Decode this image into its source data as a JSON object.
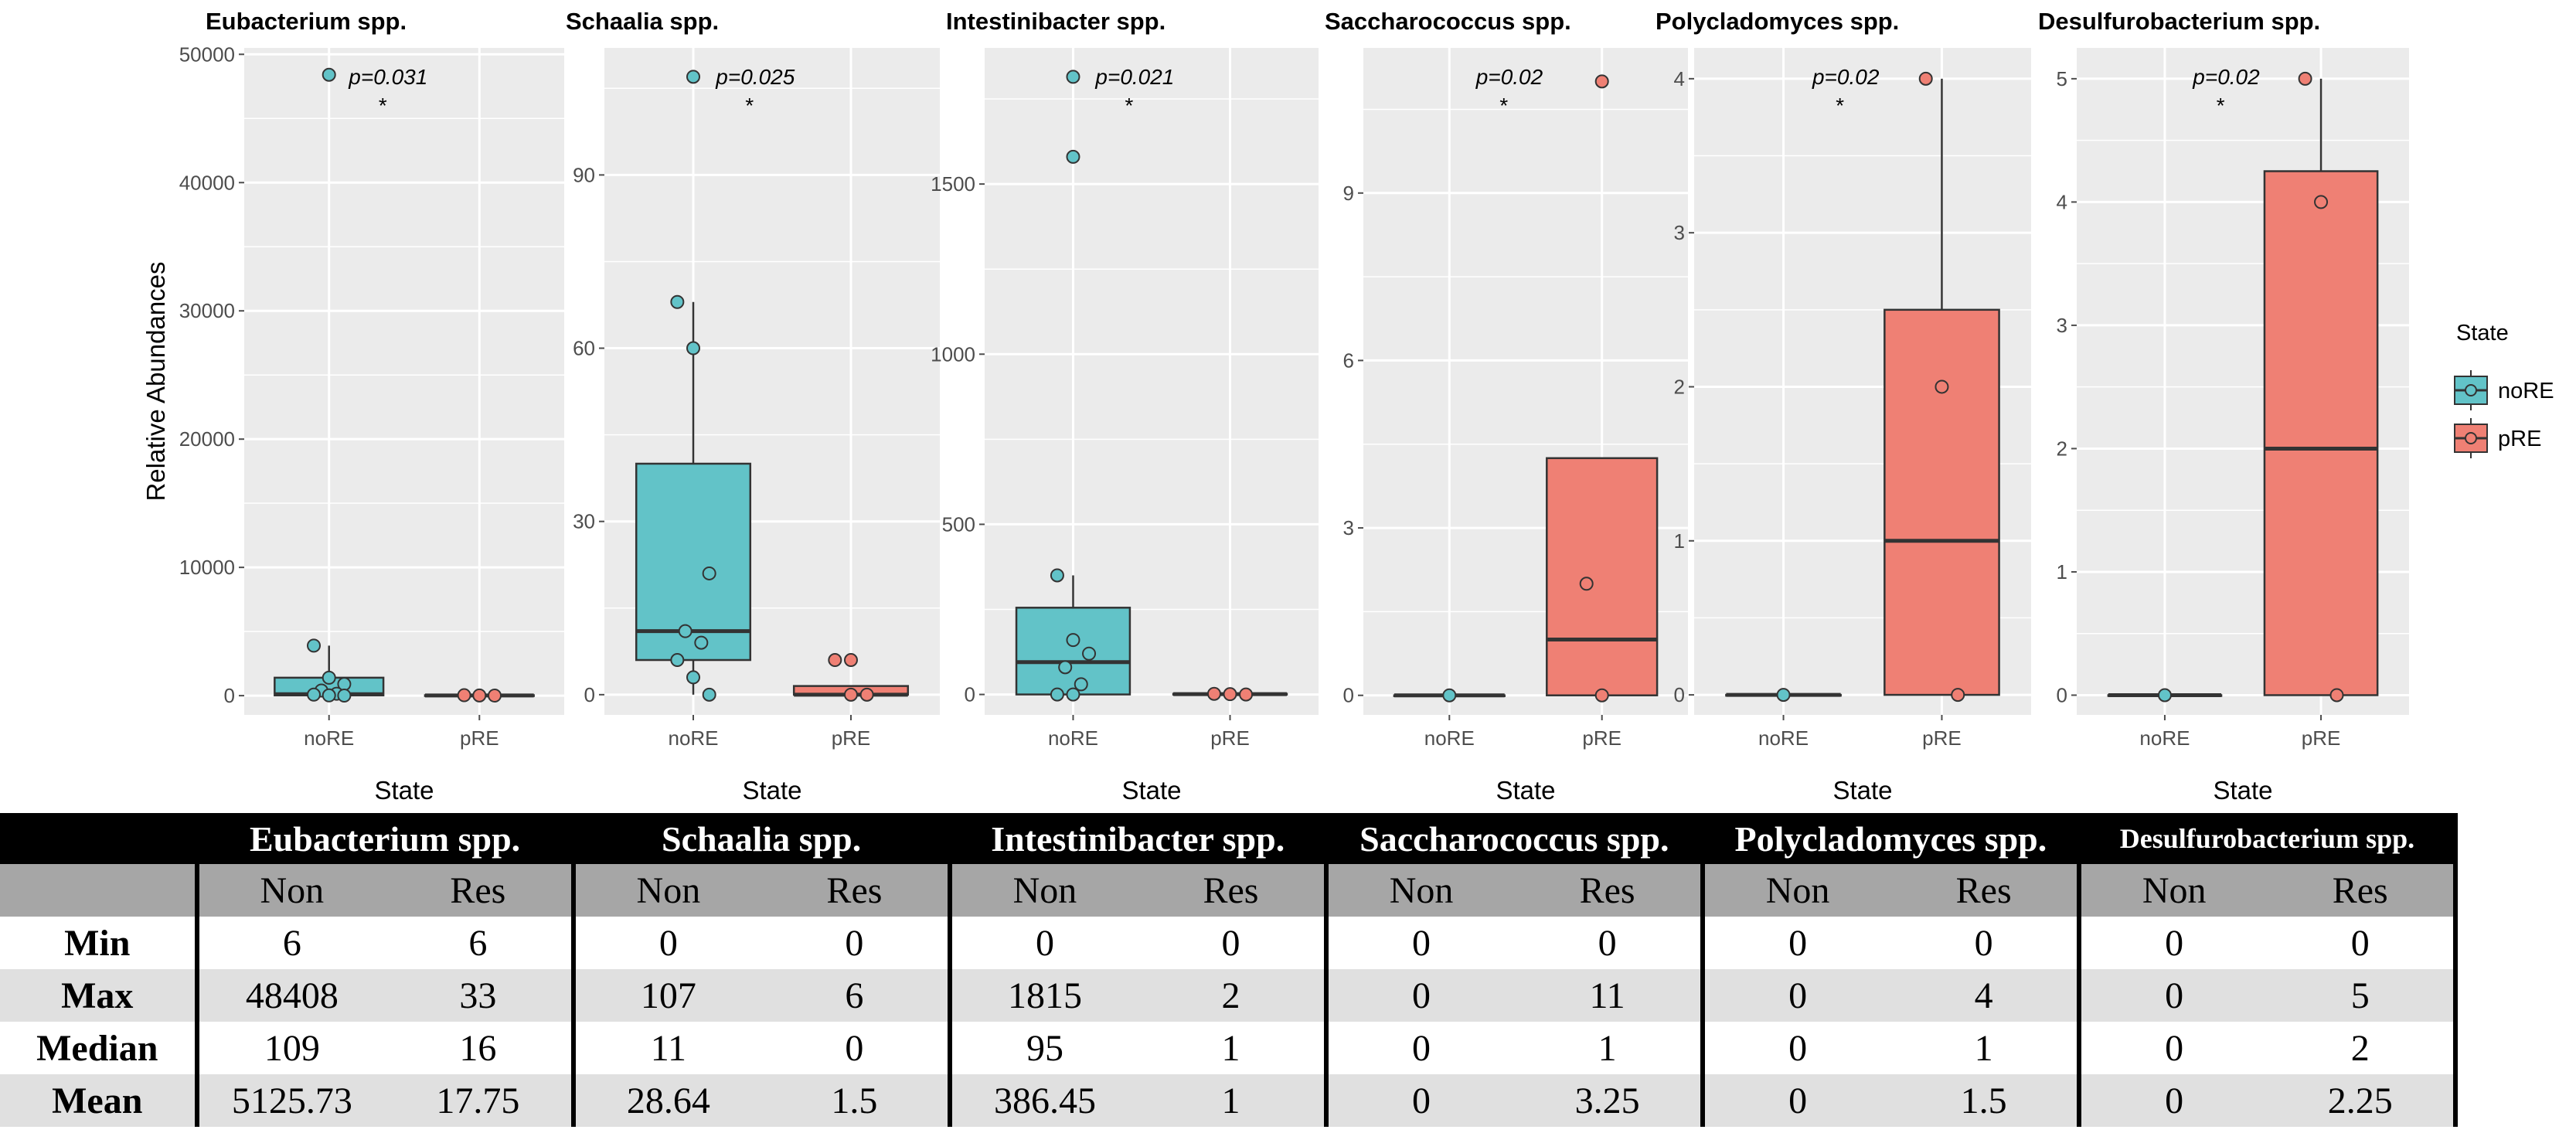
{
  "chart_data": [
    {
      "type": "box",
      "title": "Eubacterium spp.",
      "xlabel": "State",
      "ylabel": "Relative Abundances",
      "categories": [
        "noRE",
        "pRE"
      ],
      "yticks": [
        "0",
        "10000",
        "20000",
        "30000",
        "40000",
        "50000"
      ],
      "ylim": [
        -1500,
        50500
      ],
      "p_value": "p=0.031",
      "significance": "*",
      "boxes": [
        {
          "group": "noRE",
          "q1": 20,
          "median": 109,
          "q3": 1400,
          "whisker_low": 6,
          "whisker_high": 3900,
          "outliers": [
            48408
          ],
          "points": [
            3900,
            1400,
            900,
            400,
            150,
            80,
            20,
            6
          ]
        },
        {
          "group": "pRE",
          "q1": 6,
          "median": 16,
          "q3": 33,
          "whisker_low": 6,
          "whisker_high": 33,
          "outliers": [],
          "points": [
            33,
            16,
            6
          ]
        }
      ]
    },
    {
      "type": "box",
      "title": "Schaalia spp.",
      "xlabel": "State",
      "ylabel": "",
      "categories": [
        "noRE",
        "pRE"
      ],
      "yticks": [
        "0",
        "30",
        "60",
        "90"
      ],
      "ylim": [
        -3.5,
        112
      ],
      "p_value": "p=0.025",
      "significance": "*",
      "boxes": [
        {
          "group": "noRE",
          "q1": 6,
          "median": 11,
          "q3": 40,
          "whisker_low": 0,
          "whisker_high": 68,
          "outliers": [
            107
          ],
          "points": [
            68,
            60,
            21,
            11,
            9,
            6,
            3,
            0
          ]
        },
        {
          "group": "pRE",
          "q1": 0,
          "median": 0,
          "q3": 1.5,
          "whisker_low": 0,
          "whisker_high": 1.5,
          "outliers": [
            6
          ],
          "points": [
            6,
            0,
            0
          ]
        }
      ]
    },
    {
      "type": "box",
      "title": "Intestinibacter spp.",
      "xlabel": "State",
      "ylabel": "",
      "categories": [
        "noRE",
        "pRE"
      ],
      "yticks": [
        "0",
        "500",
        "1000",
        "1500"
      ],
      "ylim": [
        -60,
        1900
      ],
      "p_value": "p=0.021",
      "significance": "*",
      "boxes": [
        {
          "group": "noRE",
          "q1": 0,
          "median": 95,
          "q3": 255,
          "whisker_low": 0,
          "whisker_high": 350,
          "outliers": [
            1815,
            1580
          ],
          "points": [
            350,
            160,
            120,
            80,
            30,
            0,
            0
          ]
        },
        {
          "group": "pRE",
          "q1": 0,
          "median": 1,
          "q3": 2,
          "whisker_low": 0,
          "whisker_high": 2,
          "outliers": [],
          "points": [
            2,
            1,
            0
          ]
        }
      ]
    },
    {
      "type": "box",
      "title": "Saccharococcus spp.",
      "xlabel": "State",
      "ylabel": "",
      "categories": [
        "noRE",
        "pRE"
      ],
      "yticks": [
        "0",
        "3",
        "6",
        "9"
      ],
      "ylim": [
        -0.35,
        11.6
      ],
      "p_value": "p=0.02",
      "significance": "*",
      "boxes": [
        {
          "group": "noRE",
          "q1": 0,
          "median": 0,
          "q3": 0,
          "whisker_low": 0,
          "whisker_high": 0,
          "outliers": [],
          "points": [
            0
          ]
        },
        {
          "group": "pRE",
          "q1": 0,
          "median": 1,
          "q3": 4.25,
          "whisker_low": 0,
          "whisker_high": 4.25,
          "outliers": [
            11
          ],
          "points": [
            2,
            0
          ]
        }
      ]
    },
    {
      "type": "box",
      "title": "Polycladomyces spp.",
      "xlabel": "State",
      "ylabel": "",
      "categories": [
        "noRE",
        "pRE"
      ],
      "yticks": [
        "0",
        "1",
        "2",
        "3",
        "4"
      ],
      "ylim": [
        -0.13,
        4.2
      ],
      "p_value": "p=0.02",
      "significance": "*",
      "boxes": [
        {
          "group": "noRE",
          "q1": 0,
          "median": 0,
          "q3": 0,
          "whisker_low": 0,
          "whisker_high": 0,
          "outliers": [],
          "points": [
            0
          ]
        },
        {
          "group": "pRE",
          "q1": 0,
          "median": 1,
          "q3": 2.5,
          "whisker_low": 0,
          "whisker_high": 4,
          "outliers": [],
          "points": [
            4,
            2,
            0
          ]
        }
      ]
    },
    {
      "type": "box",
      "title": "Desulfurobacterium spp.",
      "xlabel": "State",
      "ylabel": "",
      "categories": [
        "noRE",
        "pRE"
      ],
      "yticks": [
        "0",
        "1",
        "2",
        "3",
        "4",
        "5"
      ],
      "ylim": [
        -0.16,
        5.25
      ],
      "p_value": "p=0.02",
      "significance": "*",
      "boxes": [
        {
          "group": "noRE",
          "q1": 0,
          "median": 0,
          "q3": 0,
          "whisker_low": 0,
          "whisker_high": 0,
          "outliers": [],
          "points": [
            0
          ]
        },
        {
          "group": "pRE",
          "q1": 0,
          "median": 2,
          "q3": 4.25,
          "whisker_low": 0,
          "whisker_high": 5,
          "outliers": [],
          "points": [
            5,
            4,
            0
          ]
        }
      ]
    }
  ],
  "legend": {
    "title": "State",
    "items": [
      {
        "label": "noRE",
        "color": "#62c3c8"
      },
      {
        "label": "pRE",
        "color": "#ef8074"
      }
    ]
  },
  "colors": {
    "noRE": "#62c3c8",
    "pRE": "#ef8074",
    "panel": "#ebebeb",
    "grid": "#ffffff"
  },
  "table": {
    "species": [
      "Eubacterium spp.",
      "Schaalia spp.",
      "Intestinibacter spp.",
      "Saccharococcus spp.",
      "Polycladomyces spp.",
      "Desulfurobacterium spp."
    ],
    "subheaders": [
      "Non",
      "Res"
    ],
    "rows": [
      {
        "label": "Min",
        "values": [
          "6",
          "6",
          "0",
          "0",
          "0",
          "0",
          "0",
          "0",
          "0",
          "0",
          "0",
          "0"
        ]
      },
      {
        "label": "Max",
        "values": [
          "48408",
          "33",
          "107",
          "6",
          "1815",
          "2",
          "0",
          "11",
          "0",
          "4",
          "0",
          "5"
        ]
      },
      {
        "label": "Median",
        "values": [
          "109",
          "16",
          "11",
          "0",
          "95",
          "1",
          "0",
          "1",
          "0",
          "1",
          "0",
          "2"
        ]
      },
      {
        "label": "Mean",
        "values": [
          "5125.73",
          "17.75",
          "28.64",
          "1.5",
          "386.45",
          "1",
          "0",
          "3.25",
          "0",
          "1.5",
          "0",
          "2.25"
        ]
      }
    ]
  }
}
